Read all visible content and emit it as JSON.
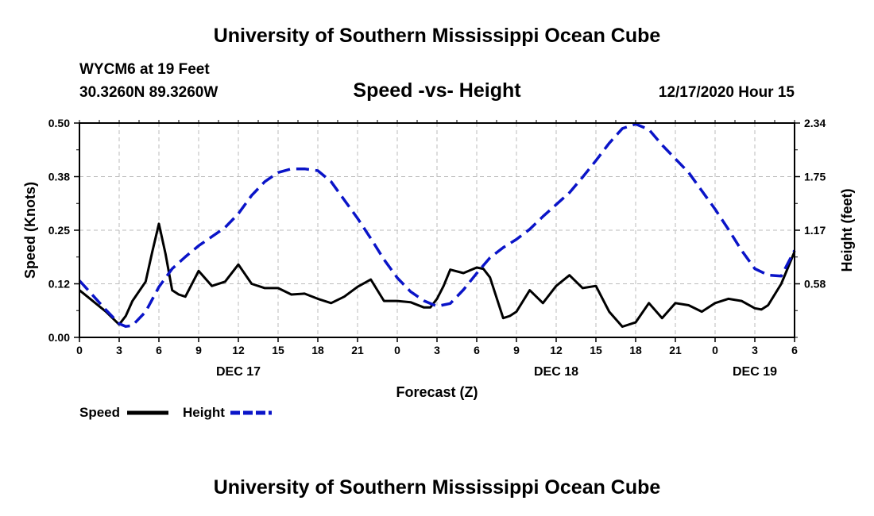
{
  "header": {
    "top_title": "University of Southern Mississippi Ocean Cube",
    "station": "WYCM6 at 19 Feet",
    "coords": "30.3260N 89.3260W",
    "chart_title": "Speed -vs- Height",
    "datetime": "12/17/2020 Hour 15",
    "bottom_title": "University of Southern Mississippi Ocean Cube"
  },
  "colors": {
    "speed": "#000000",
    "height": "#0a14c8",
    "grid": "#bbbbbb"
  },
  "chart_data": {
    "type": "line",
    "title": "Speed -vs- Height",
    "xlabel": "Forecast (Z)",
    "ylabel": "Speed (Knots)",
    "y2label": "Height (feet)",
    "xlim": [
      0,
      54
    ],
    "ylim": [
      0,
      0.5
    ],
    "y2lim": [
      0,
      2.34
    ],
    "x_ticks": [
      0,
      3,
      6,
      9,
      12,
      15,
      18,
      21,
      24,
      27,
      30,
      33,
      36,
      39,
      42,
      45,
      48,
      51,
      54
    ],
    "x_tick_labels": [
      "0",
      "3",
      "6",
      "9",
      "12",
      "15",
      "18",
      "21",
      "0",
      "3",
      "6",
      "9",
      "12",
      "15",
      "18",
      "21",
      "0",
      "3",
      "6"
    ],
    "y_ticks": [
      0,
      0.125,
      0.25,
      0.375,
      0.5
    ],
    "y_tick_labels": [
      "0.00",
      "0.12",
      "0.25",
      "0.38",
      "0.50"
    ],
    "y2_ticks": [
      0.585,
      1.17,
      1.755,
      2.34
    ],
    "y2_tick_labels": [
      "0.58",
      "1.17",
      "1.75",
      "2.34"
    ],
    "day_labels": [
      {
        "x": 12,
        "label": "DEC 17"
      },
      {
        "x": 36,
        "label": "DEC 18"
      },
      {
        "x": 51,
        "label": "DEC 19"
      }
    ],
    "grid": true,
    "legend_position": "bottom-left",
    "series": [
      {
        "name": "Speed",
        "axis": "left",
        "style": "solid",
        "x": [
          0,
          1,
          2,
          3,
          3.5,
          4,
          5,
          5.5,
          6,
          6.5,
          7,
          7.5,
          8,
          9,
          10,
          11,
          12,
          13,
          14,
          15,
          16,
          17,
          18,
          19,
          20,
          21,
          22,
          23,
          24,
          25,
          26,
          26.5,
          27,
          27.5,
          28,
          29,
          30,
          30.5,
          31,
          32,
          32.5,
          33,
          34,
          35,
          36,
          37,
          38,
          39,
          40,
          41,
          42,
          43,
          44,
          45,
          46,
          47,
          48,
          49,
          50,
          51,
          51.5,
          52,
          53,
          54
        ],
        "values": [
          0.11,
          0.085,
          0.06,
          0.03,
          0.05,
          0.085,
          0.13,
          0.2,
          0.265,
          0.195,
          0.11,
          0.1,
          0.095,
          0.155,
          0.12,
          0.13,
          0.17,
          0.125,
          0.115,
          0.115,
          0.1,
          0.102,
          0.09,
          0.08,
          0.095,
          0.118,
          0.135,
          0.085,
          0.085,
          0.082,
          0.07,
          0.07,
          0.09,
          0.12,
          0.158,
          0.15,
          0.163,
          0.16,
          0.14,
          0.045,
          0.05,
          0.06,
          0.11,
          0.08,
          0.12,
          0.145,
          0.115,
          0.12,
          0.06,
          0.025,
          0.035,
          0.08,
          0.045,
          0.08,
          0.075,
          0.06,
          0.08,
          0.09,
          0.085,
          0.068,
          0.065,
          0.075,
          0.125,
          0.2
        ]
      },
      {
        "name": "Height",
        "axis": "right",
        "style": "dashed",
        "x": [
          0,
          1,
          2,
          3,
          3.5,
          4,
          5,
          6,
          7,
          8,
          9,
          10,
          11,
          12,
          13,
          14,
          15,
          16,
          17,
          18,
          19,
          20,
          21,
          22,
          23,
          24,
          25,
          26,
          27,
          28,
          29,
          30,
          31,
          32,
          33,
          34,
          35,
          36,
          37,
          38,
          39,
          40,
          41,
          42,
          43,
          44,
          45,
          46,
          47,
          48,
          49,
          50,
          51,
          52,
          53,
          54
        ],
        "values": [
          0.62,
          0.46,
          0.3,
          0.15,
          0.12,
          0.13,
          0.28,
          0.55,
          0.75,
          0.88,
          1.0,
          1.1,
          1.2,
          1.35,
          1.55,
          1.7,
          1.8,
          1.84,
          1.84,
          1.82,
          1.7,
          1.5,
          1.3,
          1.08,
          0.85,
          0.65,
          0.5,
          0.4,
          0.34,
          0.37,
          0.52,
          0.7,
          0.87,
          0.98,
          1.07,
          1.18,
          1.32,
          1.45,
          1.58,
          1.75,
          1.93,
          2.12,
          2.28,
          2.33,
          2.27,
          2.1,
          1.95,
          1.8,
          1.6,
          1.4,
          1.18,
          0.95,
          0.75,
          0.68,
          0.67,
          0.95
        ]
      }
    ]
  },
  "legend": {
    "speed_label": "Speed",
    "height_label": "Height"
  }
}
